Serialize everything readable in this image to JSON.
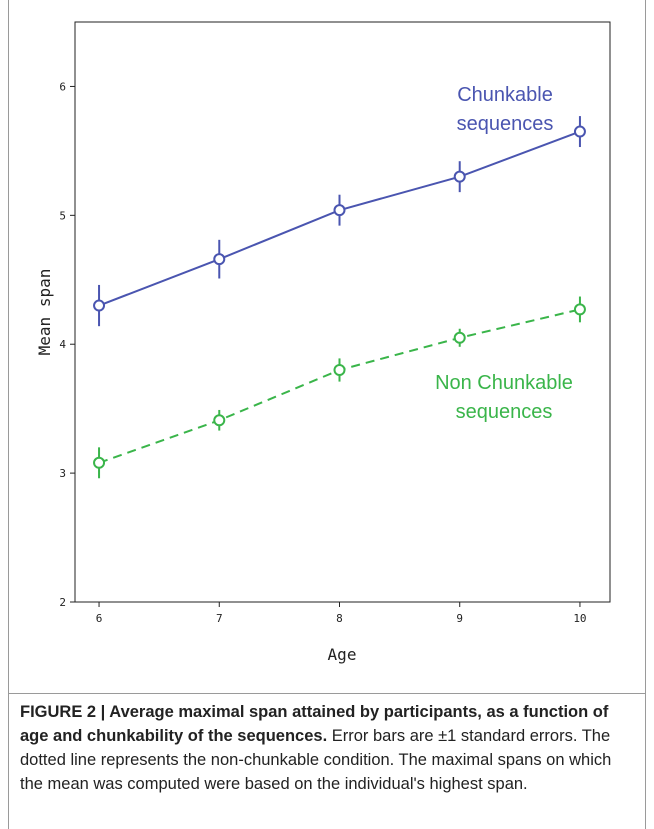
{
  "chart_data": {
    "type": "line",
    "x": [
      6,
      7,
      8,
      9,
      10
    ],
    "xlabel": "Age",
    "ylabel": "Mean span",
    "xlim": [
      5.8,
      10.25
    ],
    "ylim": [
      2,
      6.5
    ],
    "xticks": [
      "6",
      "7",
      "8",
      "9",
      "10"
    ],
    "yticks": [
      "2",
      "3",
      "4",
      "5",
      "6"
    ],
    "grid": false,
    "series": [
      {
        "name": "Chunkable sequences",
        "name_lines": [
          "Chunkable",
          "sequences"
        ],
        "values": [
          4.3,
          4.66,
          5.04,
          5.3,
          5.65
        ],
        "error": [
          0.16,
          0.15,
          0.12,
          0.12,
          0.12
        ],
        "color": "#4a55b0",
        "line_style": "solid",
        "marker": "open-circle"
      },
      {
        "name": "Non Chunkable sequences",
        "name_lines": [
          "Non Chunkable",
          "sequences"
        ],
        "values": [
          3.08,
          3.41,
          3.8,
          4.05,
          4.27
        ],
        "error": [
          0.12,
          0.08,
          0.09,
          0.07,
          0.1
        ],
        "color": "#3ab54a",
        "line_style": "dashed",
        "marker": "open-circle"
      }
    ]
  },
  "caption": {
    "title": "FIGURE 2 | Average maximal span attained by participants, as a function of age and chunkability of the sequences.",
    "body": " Error bars are ±1 standard errors. The dotted line represents the non-chunkable condition. The maximal spans on which the mean was computed were based on the individual's highest span."
  }
}
